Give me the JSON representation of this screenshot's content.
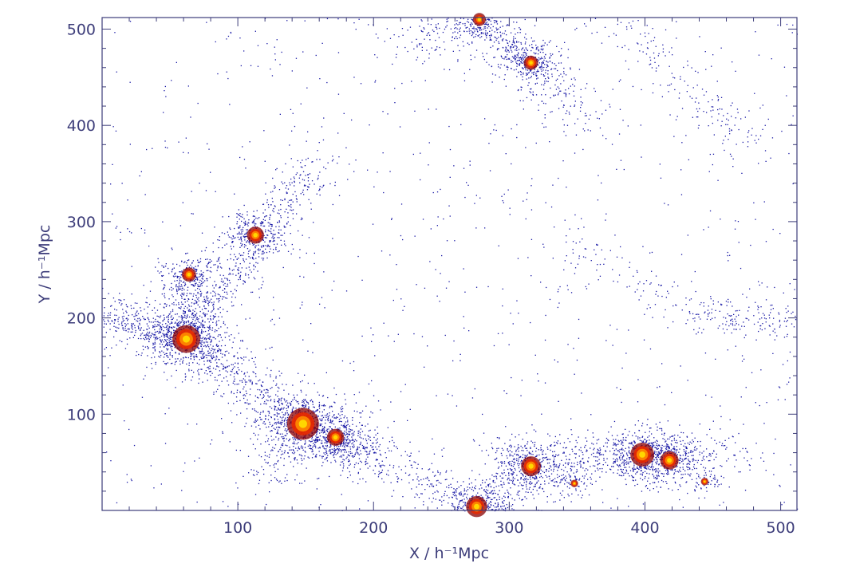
{
  "chart_data": {
    "type": "scatter",
    "title": "",
    "xlabel": "X / h⁻¹Mpc",
    "ylabel": "Y / h⁻¹Mpc",
    "xlim": [
      0,
      512
    ],
    "ylim": [
      0,
      512
    ],
    "x_ticks": [
      100,
      200,
      300,
      400,
      500
    ],
    "y_ticks": [
      100,
      200,
      300,
      400,
      500
    ],
    "x_tick_labels": [
      "100",
      "200",
      "300",
      "400",
      "500"
    ],
    "y_tick_labels": [
      "100",
      "200",
      "300",
      "400",
      "500"
    ],
    "grid": false,
    "legend": "none",
    "point_color": "#1a1aa6",
    "halo_colors": [
      "#8b0000",
      "#e82a00",
      "#ff8c00",
      "#ffe000"
    ],
    "series": [
      {
        "halos": [
          {
            "x": 148,
            "y": 90,
            "mass": 1.0
          },
          {
            "x": 62,
            "y": 178,
            "mass": 0.85
          },
          {
            "x": 398,
            "y": 58,
            "mass": 0.7
          },
          {
            "x": 418,
            "y": 52,
            "mass": 0.5
          },
          {
            "x": 316,
            "y": 46,
            "mass": 0.55
          },
          {
            "x": 276,
            "y": 4,
            "mass": 0.6
          },
          {
            "x": 113,
            "y": 286,
            "mass": 0.45
          },
          {
            "x": 172,
            "y": 76,
            "mass": 0.45
          },
          {
            "x": 64,
            "y": 245,
            "mass": 0.35
          },
          {
            "x": 316,
            "y": 465,
            "mass": 0.35
          },
          {
            "x": 278,
            "y": 510,
            "mass": 0.3
          },
          {
            "x": 444,
            "y": 30,
            "mass": 0.1
          },
          {
            "x": 348,
            "y": 28,
            "mass": 0.1
          }
        ],
        "filaments": [
          {
            "from": [
              0,
              205
            ],
            "to": [
              62,
              178
            ],
            "density": 0.9
          },
          {
            "from": [
              62,
              178
            ],
            "to": [
              113,
              286
            ],
            "density": 0.8
          },
          {
            "from": [
              113,
              286
            ],
            "to": [
              160,
              360
            ],
            "density": 0.5
          },
          {
            "from": [
              62,
              178
            ],
            "to": [
              148,
              90
            ],
            "density": 1.0
          },
          {
            "from": [
              148,
              90
            ],
            "to": [
              200,
              55
            ],
            "density": 0.8
          },
          {
            "from": [
              64,
              245
            ],
            "to": [
              62,
              178
            ],
            "density": 0.6
          },
          {
            "from": [
              200,
              55
            ],
            "to": [
              276,
              4
            ],
            "density": 0.4
          },
          {
            "from": [
              276,
              4
            ],
            "to": [
              316,
              46
            ],
            "density": 0.5
          },
          {
            "from": [
              290,
              60
            ],
            "to": [
              420,
              60
            ],
            "density": 0.5
          },
          {
            "from": [
              316,
              46
            ],
            "to": [
              398,
              58
            ],
            "density": 0.4
          },
          {
            "from": [
              398,
              58
            ],
            "to": [
              470,
              60
            ],
            "density": 0.4
          },
          {
            "from": [
              278,
              510
            ],
            "to": [
              316,
              465
            ],
            "density": 0.6
          },
          {
            "from": [
              316,
              465
            ],
            "to": [
              360,
              400
            ],
            "density": 0.4
          },
          {
            "from": [
              380,
              510
            ],
            "to": [
              480,
              380
            ],
            "density": 0.4
          },
          {
            "from": [
              330,
              290
            ],
            "to": [
              440,
              200
            ],
            "density": 0.25
          },
          {
            "from": [
              440,
              200
            ],
            "to": [
              512,
              200
            ],
            "density": 0.4
          },
          {
            "from": [
              120,
              40
            ],
            "to": [
              148,
              90
            ],
            "density": 0.3
          },
          {
            "from": [
              230,
              490
            ],
            "to": [
              278,
              510
            ],
            "density": 0.3
          }
        ]
      }
    ]
  }
}
